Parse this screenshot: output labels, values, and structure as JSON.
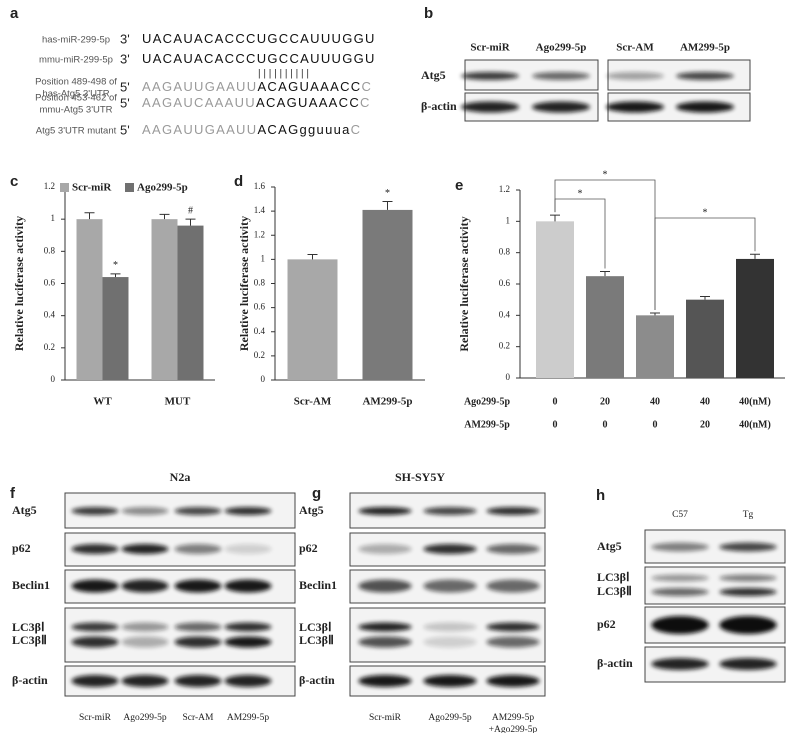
{
  "panel_labels": [
    "a",
    "b",
    "c",
    "d",
    "e",
    "f",
    "g",
    "h"
  ],
  "panel_a": {
    "rows": [
      {
        "name": [
          "has-miR-299-5p"
        ],
        "end": "3'",
        "segments": [
          {
            "text": "UACAUACACCCUGCCAUUUGGU",
            "tone": "black"
          }
        ]
      },
      {
        "name": [
          "mmu-miR-299-5p"
        ],
        "end": "3'",
        "segments": [
          {
            "text": "UACAUACACCCUGCCAUUUGGU",
            "tone": "black"
          }
        ]
      },
      {
        "name": [
          "Position 489-498 of",
          "has-Atg5 3'UTR"
        ],
        "end": "5'",
        "segments": [
          {
            "text": "AAGAUUGAAUU",
            "tone": "gray"
          },
          {
            "text": "ACAGUAAACC",
            "tone": "black"
          },
          {
            "text": "C",
            "tone": "gray"
          }
        ]
      },
      {
        "name": [
          "Position 453-462 of",
          "mmu-Atg5 3'UTR"
        ],
        "end": "5'",
        "segments": [
          {
            "text": "AAGAUCAAAUU",
            "tone": "gray"
          },
          {
            "text": "ACAGUAAACC",
            "tone": "black"
          },
          {
            "text": "C",
            "tone": "gray"
          }
        ]
      },
      {
        "name": [
          "Atg5 3'UTR mutant"
        ],
        "end": "5'",
        "segments": [
          {
            "text": "AAGAUUGAAUU",
            "tone": "gray"
          },
          {
            "text": "ACAG",
            "tone": "black"
          },
          {
            "text": "gguuua",
            "tone": "black"
          },
          {
            "text": "C",
            "tone": "gray"
          }
        ]
      }
    ],
    "pairing": "| | | | | | | | | |"
  },
  "panel_b": {
    "columns": [
      "Scr-miR",
      "Ago299-5p",
      "Scr-AM",
      "AM299-5p"
    ],
    "rows": [
      "Atg5",
      "β-actin"
    ]
  },
  "chart_data": [
    {
      "type": "bar",
      "ylabel": "Relative luciferase activity",
      "categories": [
        "WT",
        "MUT"
      ],
      "series": [
        {
          "name": "Scr-miR",
          "color": "#a8a8a8",
          "values": [
            1,
            1
          ],
          "errors": [
            0.04,
            0.03
          ]
        },
        {
          "name": "Ago299-5p",
          "color": "#707070",
          "values": [
            0.64,
            0.96
          ],
          "errors": [
            0.02,
            0.04
          ],
          "annotations": [
            "*",
            "#"
          ]
        }
      ],
      "ylim": [
        0,
        1.2
      ],
      "yticks": [
        0,
        0.2,
        0.4,
        0.6,
        0.8,
        1,
        1.2
      ],
      "legend": "top"
    },
    {
      "type": "bar",
      "ylabel": "Relative luciferase activity",
      "categories": [
        "Scr-AM",
        "AM299-5p"
      ],
      "values": [
        1,
        1.41
      ],
      "errors": [
        0.04,
        0.07
      ],
      "colors": [
        "#a8a8a8",
        "#7a7a7a"
      ],
      "annotations": [
        null,
        "*"
      ],
      "ylim": [
        0,
        1.6
      ],
      "yticks": [
        0,
        0.2,
        0.4,
        0.6,
        0.8,
        1,
        1.2,
        1.4,
        1.6
      ]
    },
    {
      "type": "bar",
      "ylabel": "Relative luciferase activity",
      "values": [
        1,
        0.65,
        0.4,
        0.5,
        0.76
      ],
      "errors": [
        0.04,
        0.03,
        0.015,
        0.02,
        0.03
      ],
      "colors": [
        "#cccccc",
        "#7a7a7a",
        "#8c8c8c",
        "#555555",
        "#333333"
      ],
      "treatments": [
        {
          "name": "Ago299-5p",
          "labels": [
            "0",
            "20",
            "40",
            "40",
            "40(nM)"
          ]
        },
        {
          "name": "AM299-5p",
          "labels": [
            "0",
            "0",
            "0",
            "20",
            "40(nM)"
          ]
        }
      ],
      "comparisons": [
        {
          "pair": [
            0,
            2
          ],
          "text": "*"
        },
        {
          "pair": [
            0,
            1
          ],
          "text": "*"
        },
        {
          "pair": [
            2,
            4
          ],
          "text": "*"
        }
      ],
      "ylim": [
        0,
        1.2
      ],
      "yticks": [
        0,
        0.2,
        0.4,
        0.6,
        0.8,
        1,
        1.2
      ]
    }
  ],
  "panel_f": {
    "title": "N2a",
    "rows": [
      "Atg5",
      "p62",
      "Beclin1",
      "LC3βⅠ",
      "LC3βⅡ",
      "β-actin"
    ],
    "columns": [
      [
        "Scr-miR"
      ],
      [
        "Ago299-5p"
      ],
      [
        "Scr-AM"
      ],
      [
        "AM299-5p"
      ]
    ]
  },
  "panel_g": {
    "title": "SH-SY5Y",
    "rows": [
      "Atg5",
      "p62",
      "Beclin1",
      "LC3βⅠ",
      "LC3βⅡ",
      "β-actin"
    ],
    "columns": [
      [
        "Scr-miR"
      ],
      [
        "Ago299-5p"
      ],
      [
        "AM299-5p",
        "+Ago299-5p"
      ]
    ]
  },
  "panel_h": {
    "rows": [
      "Atg5",
      "LC3βⅠ",
      "LC3βⅡ",
      "p62",
      "β-actin"
    ],
    "columns": [
      [
        "C57"
      ],
      [
        "Tg"
      ]
    ]
  }
}
